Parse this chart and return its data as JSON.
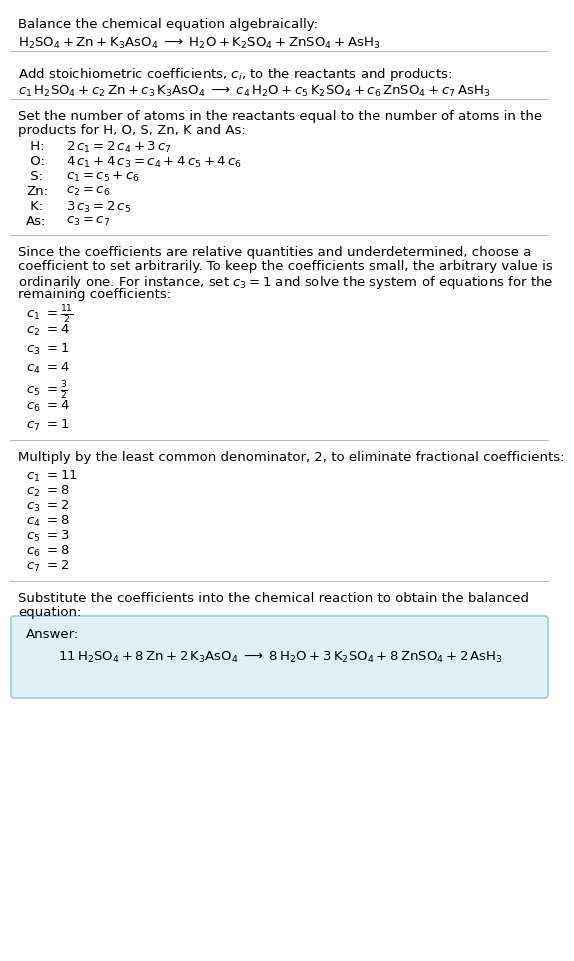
{
  "title_line": "Balance the chemical equation algebraically:",
  "eq1": "$\\mathrm{H_2SO_4 + Zn + K_3AsO_4 \\;\\longrightarrow\\; H_2O + K_2SO_4 + ZnSO_4 + AsH_3}$",
  "section2_title": "Add stoichiometric coefficients, $c_i$, to the reactants and products:",
  "eq2": "$c_1\\, \\mathrm{H_2SO_4} + c_2\\, \\mathrm{Zn} + c_3\\, \\mathrm{K_3AsO_4} \\;\\longrightarrow\\; c_4\\, \\mathrm{H_2O} + c_5\\, \\mathrm{K_2SO_4} + c_6\\, \\mathrm{ZnSO_4} + c_7\\, \\mathrm{AsH_3}$",
  "section3_line1": "Set the number of atoms in the reactants equal to the number of atoms in the",
  "section3_line2": "products for H, O, S, Zn, K and As:",
  "atoms": [
    [
      " H:",
      "$2\\,c_1 = 2\\,c_4 + 3\\,c_7$"
    ],
    [
      " O:",
      "$4\\,c_1 + 4\\,c_3 = c_4 + 4\\,c_5 + 4\\,c_6$"
    ],
    [
      " S:",
      "$c_1 = c_5 + c_6$"
    ],
    [
      "Zn:",
      "$c_2 = c_6$"
    ],
    [
      " K:",
      "$3\\,c_3 = 2\\,c_5$"
    ],
    [
      "As:",
      "$c_3 = c_7$"
    ]
  ],
  "section4_line1": "Since the coefficients are relative quantities and underdetermined, choose a",
  "section4_line2": "coefficient to set arbitrarily. To keep the coefficients small, the arbitrary value is",
  "section4_line3": "ordinarily one. For instance, set $c_3 = 1$ and solve the system of equations for the",
  "section4_line4": "remaining coefficients:",
  "coeffs1_labels": [
    "$c_1$",
    "$c_2$",
    "$c_3$",
    "$c_4$",
    "$c_5$",
    "$c_6$",
    "$c_7$"
  ],
  "coeffs1_values": [
    "$= \\frac{11}{2}$",
    "$= 4$",
    "$= 1$",
    "$= 4$",
    "$= \\frac{3}{2}$",
    "$= 4$",
    "$= 1$"
  ],
  "section5_title": "Multiply by the least common denominator, 2, to eliminate fractional coefficients:",
  "coeffs2_labels": [
    "$c_1$",
    "$c_2$",
    "$c_3$",
    "$c_4$",
    "$c_5$",
    "$c_6$",
    "$c_7$"
  ],
  "coeffs2_values": [
    "$= 11$",
    "$= 8$",
    "$= 2$",
    "$= 8$",
    "$= 3$",
    "$= 8$",
    "$= 2$"
  ],
  "section6_line1": "Substitute the coefficients into the chemical reaction to obtain the balanced",
  "section6_line2": "equation:",
  "answer_label": "Answer:",
  "answer_eq": "$11\\, \\mathrm{H_2SO_4} + 8\\, \\mathrm{Zn} + 2\\, \\mathrm{K_3AsO_4} \\;\\longrightarrow\\; 8\\, \\mathrm{H_2O} + 3\\, \\mathrm{K_2SO_4} + 8\\, \\mathrm{ZnSO_4} + 2\\, \\mathrm{AsH_3}$",
  "bg_color": "#ffffff",
  "answer_box_facecolor": "#dff0f7",
  "answer_box_edgecolor": "#99cce0",
  "text_color": "#000000",
  "sep_color": "#bbbbbb",
  "fs": 9.5,
  "fs_eq": 9.5
}
